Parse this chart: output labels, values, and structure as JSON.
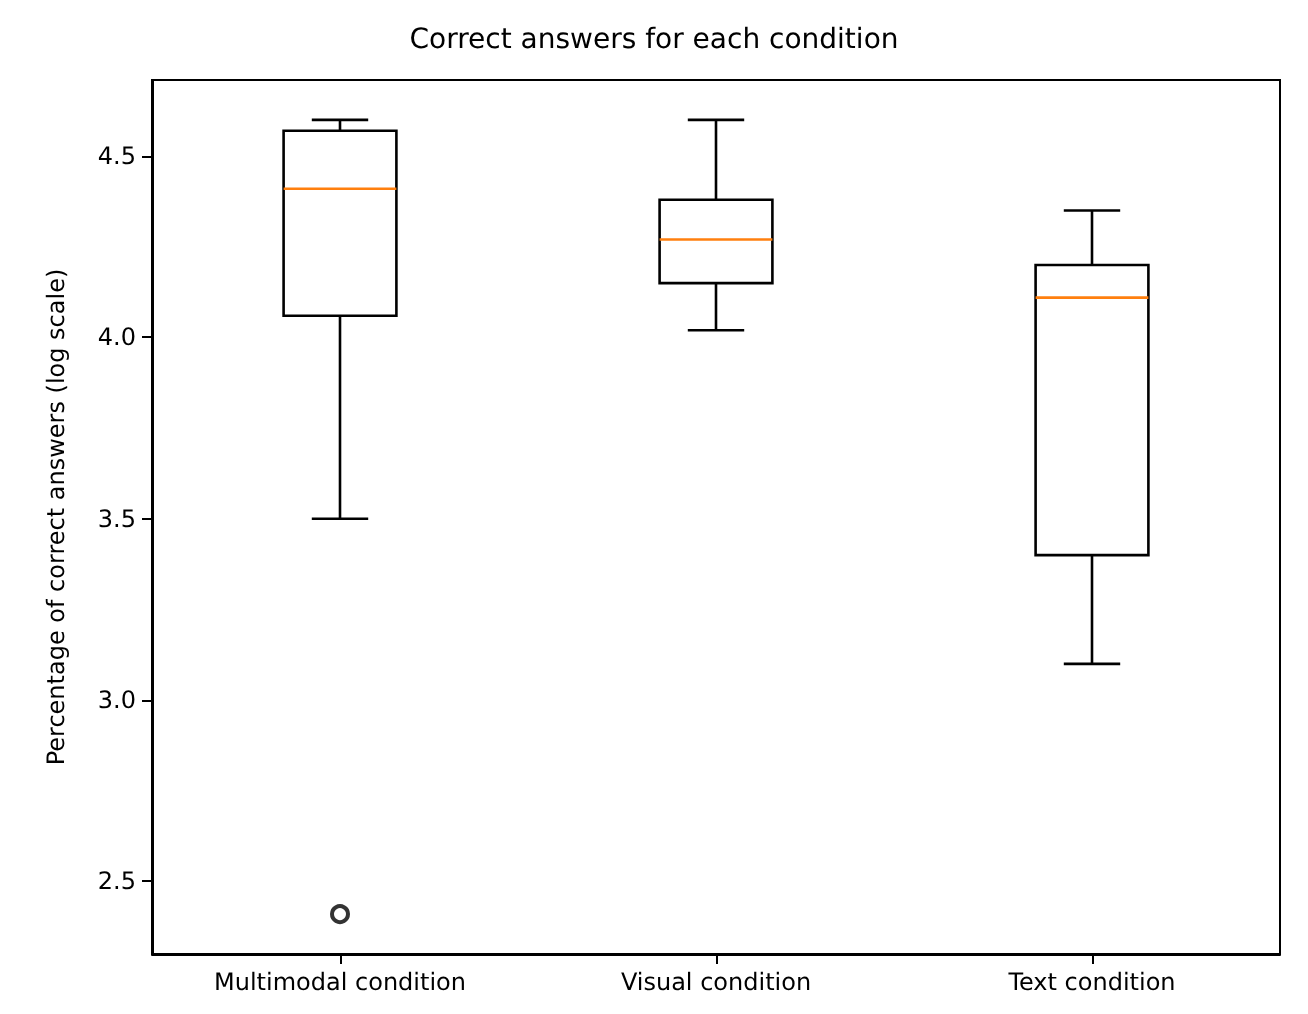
{
  "chart_data": {
    "type": "box",
    "title": "Correct answers for each condition",
    "ylabel": "Percentage of correct answers (log scale)",
    "categories": [
      "Multimodal condition",
      "Visual condition",
      "Text condition"
    ],
    "series": [
      {
        "color": "#000000",
        "boxes": [
          {
            "low": 3.5,
            "q1": 4.06,
            "median": 4.41,
            "q3": 4.57,
            "high": 4.6,
            "outliers": [
              2.41
            ]
          },
          {
            "low": 4.02,
            "q1": 4.15,
            "median": 4.27,
            "q3": 4.38,
            "high": 4.6
          },
          {
            "low": 3.1,
            "q1": 3.4,
            "median": 4.11,
            "q3": 4.2,
            "high": 4.35
          }
        ]
      }
    ],
    "ylim": [
      2.3,
      4.71
    ],
    "yticks": [
      {
        "value": 2.5,
        "label": "2.5"
      },
      {
        "value": 3,
        "label": "3.0"
      },
      {
        "value": 3.5,
        "label": "3.5"
      },
      {
        "value": 4,
        "label": "4.0"
      },
      {
        "value": 4.5,
        "label": "4.5"
      }
    ],
    "grid": false
  }
}
